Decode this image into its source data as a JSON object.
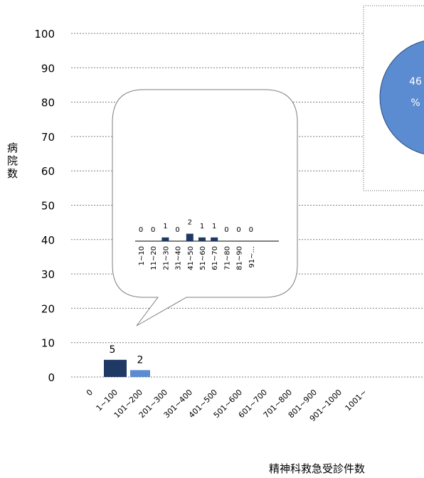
{
  "chart_data": {
    "type": "bar",
    "title": "",
    "ylabel": "病院数",
    "xlabel": "精神科救急受診件数",
    "ylim": [
      0,
      100
    ],
    "yticks": [
      0,
      10,
      20,
      30,
      40,
      50,
      60,
      70,
      80,
      90,
      100
    ],
    "grid": true,
    "categories": [
      "0",
      "1~100",
      "101~200",
      "201~300",
      "301~400",
      "401~500",
      "501~600",
      "601~700",
      "701~800",
      "801~900",
      "901~1000",
      "1001~"
    ],
    "values": [
      0,
      5,
      2,
      0,
      0,
      0,
      0,
      0,
      0,
      0,
      0,
      0
    ],
    "data_labels": [
      "",
      "5",
      "2",
      "",
      "",
      "",
      "",
      "",
      "",
      "",
      "",
      ""
    ],
    "colors": [
      "#1f3864",
      "#1f3864",
      "#5b8bd0",
      "#5b8bd0",
      "#5b8bd0",
      "#5b8bd0",
      "#5b8bd0",
      "#5b8bd0",
      "#5b8bd0",
      "#5b8bd0",
      "#5b8bd0",
      "#5b8bd0"
    ],
    "inset": {
      "type": "bar",
      "categories": [
        "1~10",
        "11~20",
        "21~30",
        "31~40",
        "41~50",
        "51~60",
        "61~70",
        "71~80",
        "81~90",
        "91~..."
      ],
      "values": [
        0,
        0,
        1,
        0,
        2,
        1,
        1,
        0,
        0,
        0
      ],
      "color": "#1f3864"
    },
    "pie_fragment": {
      "label_line1": "46",
      "label_line2": "%",
      "color": "#5b8bd0"
    }
  }
}
